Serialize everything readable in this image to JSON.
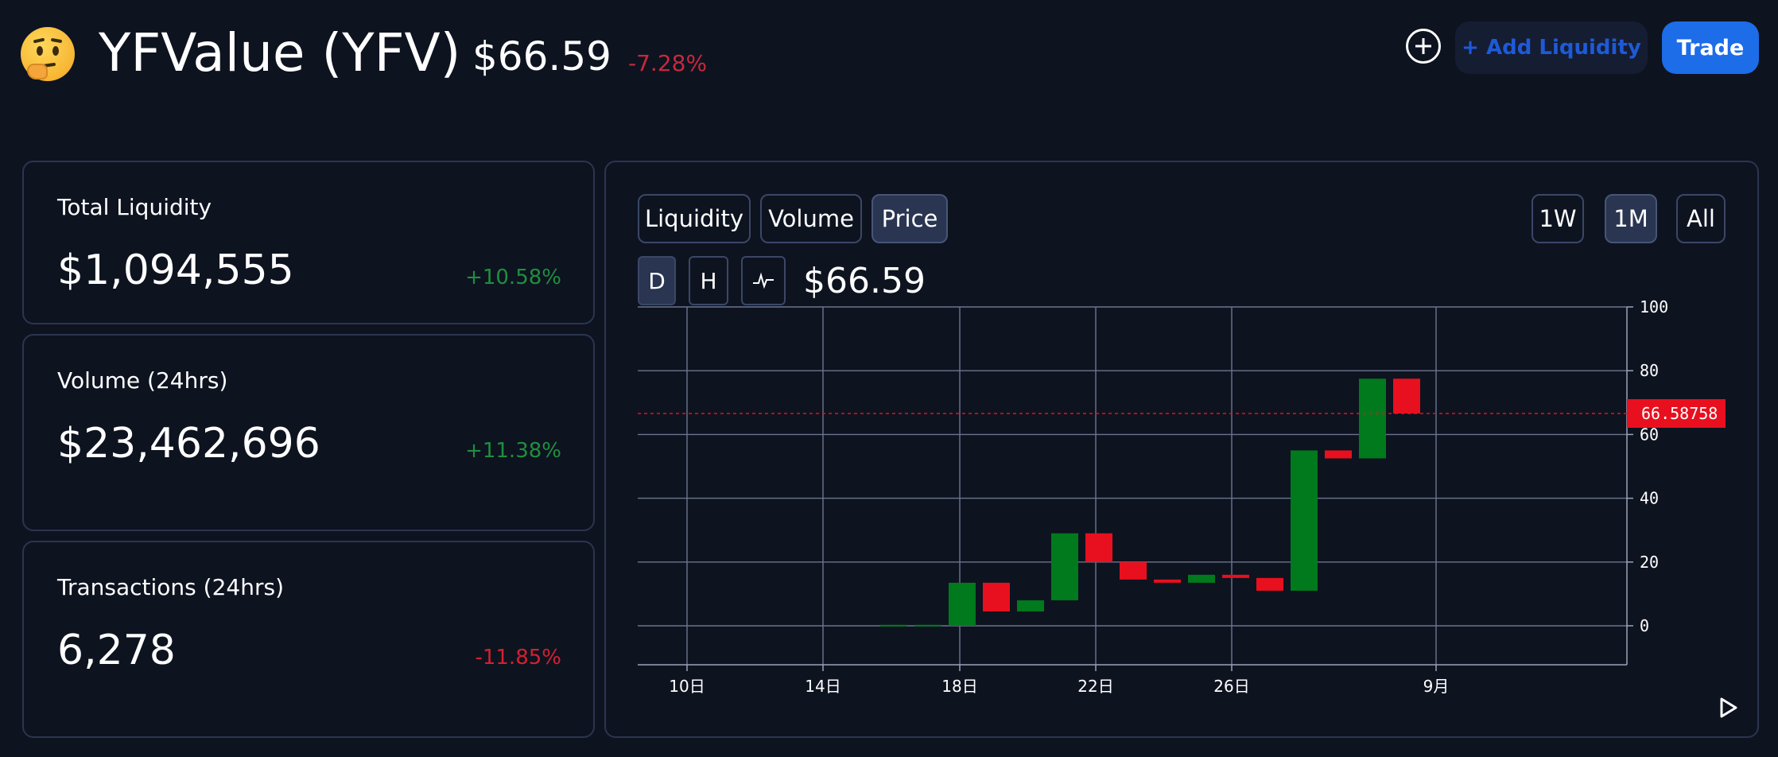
{
  "token": {
    "emoji_icon": "thinking-face-icon",
    "title": "YFValue (YFV)",
    "price": "$66.59",
    "price_change": "-7.28%"
  },
  "header": {
    "add_icon": "plus-circle-icon",
    "add_liquidity_label": "+ Add Liquidity",
    "trade_label": "Trade"
  },
  "stats": {
    "liquidity": {
      "label": "Total Liquidity",
      "value": "$1,094,555",
      "change": "+10.58%"
    },
    "volume": {
      "label": "Volume (24hrs)",
      "value": "$23,462,696",
      "change": "+11.38%"
    },
    "transactions": {
      "label": "Transactions (24hrs)",
      "value": "6,278",
      "change": "-11.85%"
    }
  },
  "chart_panel": {
    "tabs": [
      "Liquidity",
      "Volume",
      "Price"
    ],
    "active_tab": "Price",
    "ranges": [
      "1W",
      "1M",
      "All"
    ],
    "active_range": "1M",
    "intervals": [
      "D",
      "H"
    ],
    "active_interval": "D",
    "line_toggle_icon": "line-chart-icon",
    "current_price": "$66.59",
    "play_icon": "play-icon"
  },
  "colors": {
    "up": "#007a1c",
    "down": "#e8101e",
    "price_line": "#e8101e",
    "accent": "#1d6ce8"
  },
  "chart_data": {
    "type": "candlestick",
    "x_ticks": [
      "10日",
      "14日",
      "18日",
      "22日",
      "26日",
      "9月"
    ],
    "y_ticks": [
      0,
      20,
      40,
      60,
      80,
      100
    ],
    "ylim": [
      -12,
      100
    ],
    "last_price_label": "66.58758",
    "last_price": 66.58758,
    "grid": true,
    "candles": [
      {
        "x": "8/17",
        "open": 0,
        "close": 0.3
      },
      {
        "x": "8/18",
        "open": 0,
        "close": 0.3
      },
      {
        "x": "8/19",
        "open": 0,
        "close": 13.5
      },
      {
        "x": "8/20",
        "open": 13.5,
        "close": 4.5
      },
      {
        "x": "8/21",
        "open": 4.5,
        "close": 8
      },
      {
        "x": "8/22",
        "open": 8,
        "close": 29
      },
      {
        "x": "8/23",
        "open": 29,
        "close": 20
      },
      {
        "x": "8/24",
        "open": 20,
        "close": 14.5
      },
      {
        "x": "8/25",
        "open": 14.5,
        "close": 13.5
      },
      {
        "x": "8/26",
        "open": 13.5,
        "close": 16
      },
      {
        "x": "8/27",
        "open": 16,
        "close": 15
      },
      {
        "x": "8/28",
        "open": 15,
        "close": 11
      },
      {
        "x": "8/29",
        "open": 11,
        "close": 55
      },
      {
        "x": "8/30",
        "open": 55,
        "close": 52.5
      },
      {
        "x": "8/31",
        "open": 52.5,
        "close": 77.5
      },
      {
        "x": "9/1",
        "open": 77.5,
        "close": 66.59
      }
    ]
  }
}
